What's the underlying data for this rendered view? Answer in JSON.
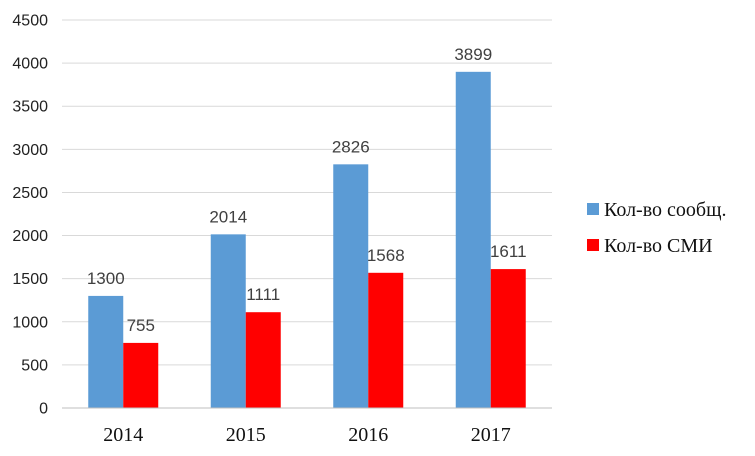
{
  "chart_data": {
    "type": "bar",
    "title": "",
    "xlabel": "",
    "ylabel": "",
    "categories": [
      "2014",
      "2015",
      "2016",
      "2017"
    ],
    "series": [
      {
        "name": "Кол-во сообщ.",
        "values": [
          1300,
          2014,
          2826,
          3899
        ],
        "color": "#5b9bd5"
      },
      {
        "name": "Кол-во СМИ",
        "values": [
          755,
          1111,
          1568,
          1611
        ],
        "color": "#ff0000"
      }
    ],
    "ylim": [
      0,
      4500
    ],
    "yticks": [
      0,
      500,
      1000,
      1500,
      2000,
      2500,
      3000,
      3500,
      4000,
      4500
    ],
    "grid": true,
    "gridline_color": "#d9d9d9",
    "axis_color": "#bfbfbf",
    "legend_position": "right",
    "data_labels": true
  }
}
